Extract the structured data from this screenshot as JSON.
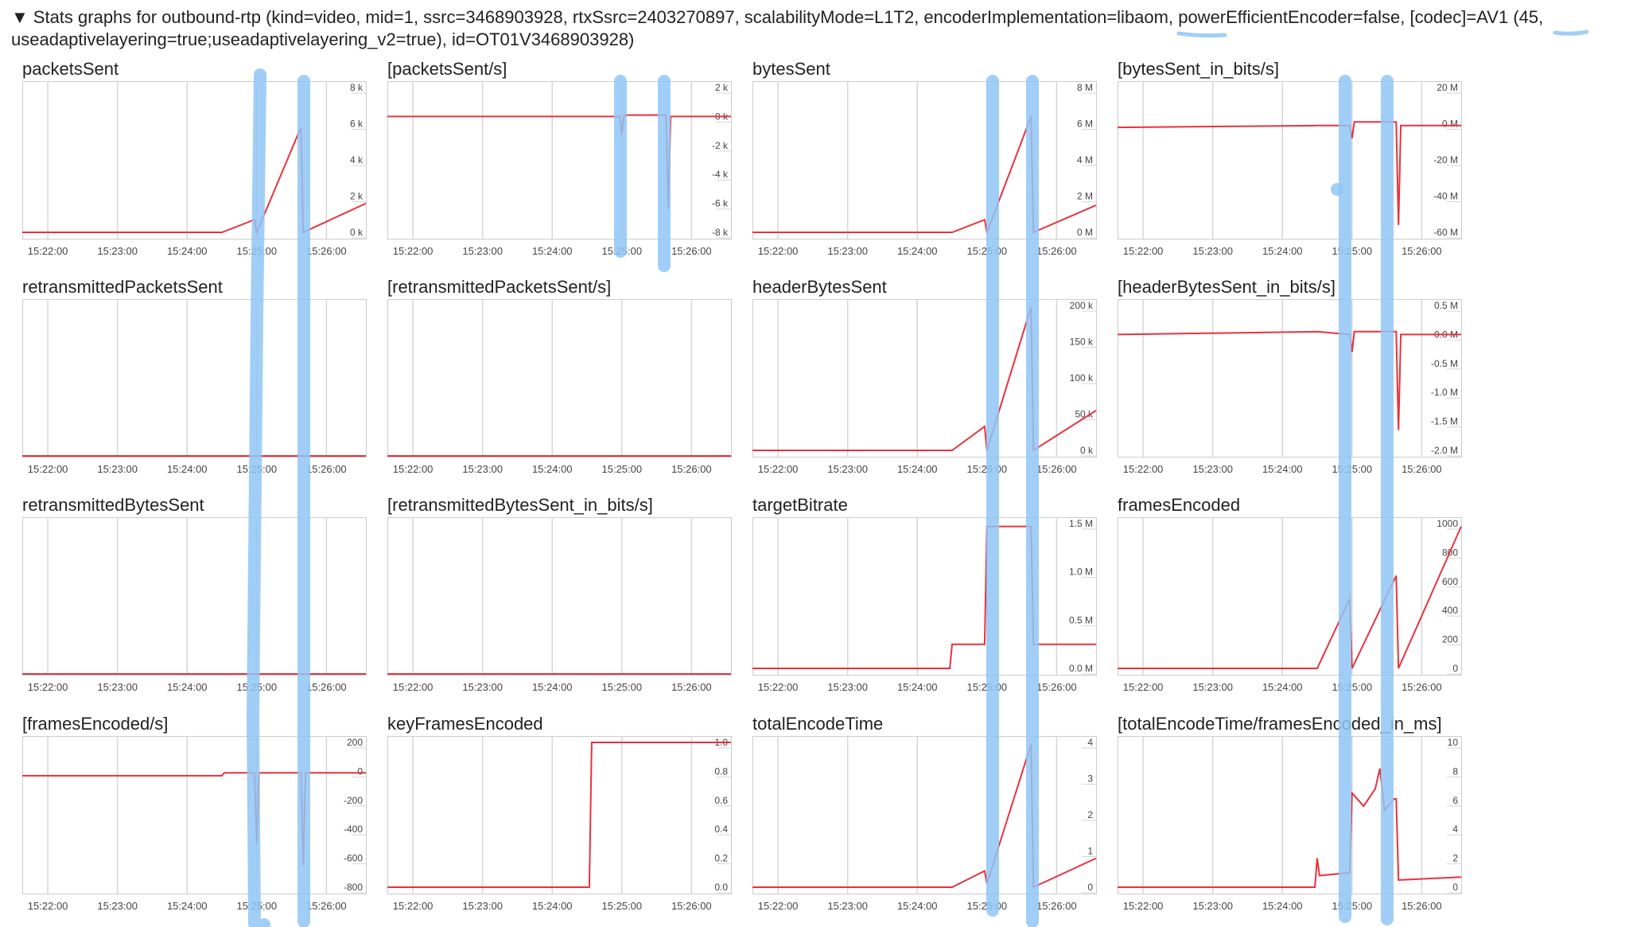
{
  "header": {
    "toggle_glyph": "▼",
    "line1_prefix": "Stats graphs for outbound-rtp (kind=video, mid=1, ssrc=3468903928, rtxSsrc=2403270897, scalabilityMode=L1T2, encoderImplementation=",
    "encoder_impl": "libaom",
    "line1_mid": ", powerEfficientEncoder=false, [codec]=",
    "codec": "AV1",
    "line1_suffix": " (45,",
    "line2": "useadaptivelayering=true;useadaptivelayering_v2=true), id=OT01V3468903928)"
  },
  "colors": {
    "line": "#e8323c",
    "grid": "#d6d6d6",
    "frame": "#cccccc",
    "annotation": "#8fc6f5",
    "text": "#222222",
    "tick_text": "#444444"
  },
  "x_ticks": [
    "15:22:00",
    "15:23:00",
    "15:24:00",
    "15:25:00",
    "15:26:00"
  ],
  "chart_data": [
    {
      "type": "line",
      "title": "packetsSent",
      "x": [
        "15:21:38",
        "15:24:30",
        "15:24:58",
        "15:25:00",
        "15:25:38",
        "15:25:40",
        "15:26:34"
      ],
      "values": [
        0,
        0,
        700,
        0,
        5800,
        0,
        1600
      ],
      "yticks": [
        "8 k",
        "6 k",
        "4 k",
        "2 k",
        "0 k"
      ],
      "ylim": [
        0,
        8000
      ]
    },
    {
      "type": "line",
      "title": "[packetsSent/s]",
      "x": [
        "15:21:38",
        "15:24:58",
        "15:25:00",
        "15:25:02",
        "15:25:38",
        "15:25:40",
        "15:25:42",
        "15:26:34"
      ],
      "values": [
        0,
        0,
        -1200,
        100,
        100,
        -6400,
        0,
        0
      ],
      "yticks": [
        "2 k",
        "0 k",
        "-2 k",
        "-4 k",
        "-6 k",
        "-8 k"
      ],
      "ylim": [
        -8000,
        2000
      ]
    },
    {
      "type": "line",
      "title": "bytesSent",
      "x": [
        "15:21:38",
        "15:24:30",
        "15:24:58",
        "15:25:00",
        "15:25:38",
        "15:25:40",
        "15:26:34"
      ],
      "values": [
        0,
        0,
        700000,
        0,
        6400000,
        0,
        1500000
      ],
      "yticks": [
        "8 M",
        "6 M",
        "4 M",
        "2 M",
        "0 M"
      ],
      "ylim": [
        0,
        8000000
      ]
    },
    {
      "type": "line",
      "title": "[bytesSent_in_bits/s]",
      "x": [
        "15:21:38",
        "15:24:30",
        "15:24:58",
        "15:25:00",
        "15:25:02",
        "15:25:38",
        "15:25:40",
        "15:25:42",
        "15:26:34"
      ],
      "values": [
        -2000000,
        -1000000,
        -1000000,
        -8000000,
        1000000,
        1000000,
        -56000000,
        -1000000,
        -1000000
      ],
      "yticks": [
        "20 M",
        "0 M",
        "-20 M",
        "-40 M",
        "-60 M"
      ],
      "ylim": [
        -60000000,
        20000000
      ]
    },
    {
      "type": "line",
      "title": "retransmittedPacketsSent",
      "x": [
        "15:21:38",
        "15:26:34"
      ],
      "values": [
        0,
        0
      ],
      "yticks": [],
      "ylim": [
        0,
        1
      ]
    },
    {
      "type": "line",
      "title": "[retransmittedPacketsSent/s]",
      "x": [
        "15:21:38",
        "15:26:34"
      ],
      "values": [
        0,
        0
      ],
      "yticks": [],
      "ylim": [
        0,
        1
      ]
    },
    {
      "type": "line",
      "title": "headerBytesSent",
      "x": [
        "15:21:38",
        "15:24:30",
        "15:24:58",
        "15:25:00",
        "15:25:38",
        "15:25:40",
        "15:26:34"
      ],
      "values": [
        0,
        0,
        33000,
        0,
        198000,
        0,
        55000
      ],
      "yticks": [
        "200 k",
        "150 k",
        "100 k",
        "50 k",
        "0 k"
      ],
      "ylim": [
        0,
        200000
      ]
    },
    {
      "type": "line",
      "title": "[headerBytesSent_in_bits/s]",
      "x": [
        "15:21:38",
        "15:24:30",
        "15:24:58",
        "15:25:00",
        "15:25:02",
        "15:25:38",
        "15:25:40",
        "15:25:42",
        "15:26:34"
      ],
      "values": [
        0,
        50000,
        0,
        -300000,
        50000,
        50000,
        -1650000,
        0,
        0
      ],
      "yticks": [
        "0.5 M",
        "0.0 M",
        "-0.5 M",
        "-1.0 M",
        "-1.5 M",
        "-2.0 M"
      ],
      "ylim": [
        -2000000,
        500000
      ]
    },
    {
      "type": "line",
      "title": "retransmittedBytesSent",
      "x": [
        "15:21:38",
        "15:26:34"
      ],
      "values": [
        0,
        0
      ],
      "yticks": [],
      "ylim": [
        0,
        1
      ]
    },
    {
      "type": "line",
      "title": "[retransmittedBytesSent_in_bits/s]",
      "x": [
        "15:21:38",
        "15:26:34"
      ],
      "values": [
        0,
        0
      ],
      "yticks": [],
      "ylim": [
        0,
        1
      ]
    },
    {
      "type": "line",
      "title": "targetBitrate",
      "x": [
        "15:21:38",
        "15:24:28",
        "15:24:30",
        "15:24:58",
        "15:25:00",
        "15:25:38",
        "15:25:40",
        "15:26:34"
      ],
      "values": [
        0,
        0,
        250000,
        250000,
        1470000,
        1470000,
        250000,
        250000
      ],
      "yticks": [
        "1.5 M",
        "1.0 M",
        "0.5 M",
        "0.0 M"
      ],
      "ylim": [
        0,
        1500000
      ]
    },
    {
      "type": "line",
      "title": "framesEncoded",
      "x": [
        "15:21:38",
        "15:24:30",
        "15:24:58",
        "15:25:00",
        "15:25:38",
        "15:25:40",
        "15:26:34"
      ],
      "values": [
        0,
        0,
        480,
        0,
        640,
        0,
        980
      ],
      "yticks": [
        "1000",
        "800",
        "600",
        "400",
        "200",
        "0"
      ],
      "ylim": [
        0,
        1000
      ]
    },
    {
      "type": "line",
      "title": "[framesEncoded/s]",
      "x": [
        "15:21:38",
        "15:24:30",
        "15:24:32",
        "15:24:58",
        "15:25:00",
        "15:25:02",
        "15:25:38",
        "15:25:40",
        "15:25:42",
        "15:26:34"
      ],
      "values": [
        -30,
        -30,
        -10,
        -10,
        -500,
        -10,
        -10,
        -650,
        -10,
        -10
      ],
      "yticks": [
        "200",
        "0",
        "-200",
        "-400",
        "-600",
        "-800"
      ],
      "ylim": [
        -800,
        200
      ]
    },
    {
      "type": "line",
      "title": "keyFramesEncoded",
      "x": [
        "15:21:38",
        "15:24:32",
        "15:24:34",
        "15:26:34"
      ],
      "values": [
        0,
        0,
        1,
        1
      ],
      "yticks": [
        "1.0",
        "0.8",
        "0.6",
        "0.4",
        "0.2",
        "0.0"
      ],
      "ylim": [
        0,
        1
      ]
    },
    {
      "type": "line",
      "title": "totalEncodeTime",
      "x": [
        "15:21:38",
        "15:24:30",
        "15:24:58",
        "15:25:00",
        "15:25:38",
        "15:25:40",
        "15:26:34"
      ],
      "values": [
        0,
        0,
        0.45,
        0.1,
        3.95,
        0,
        0.8
      ],
      "yticks": [
        "4",
        "3",
        "2",
        "1",
        "0"
      ],
      "ylim": [
        0,
        4
      ]
    },
    {
      "type": "line",
      "title": "[totalEncodeTime/framesEncoded_in_ms]",
      "x": [
        "15:21:38",
        "15:24:28",
        "15:24:30",
        "15:24:32",
        "15:24:58",
        "15:25:00",
        "15:25:10",
        "15:25:20",
        "15:25:24",
        "15:25:28",
        "15:25:36",
        "15:25:38",
        "15:25:40",
        "15:26:34"
      ],
      "values": [
        0,
        0,
        2,
        0.8,
        1,
        6.5,
        5.6,
        6.8,
        8.2,
        5.3,
        6.1,
        6.1,
        0.5,
        0.7
      ],
      "yticks": [
        "10",
        "8",
        "6",
        "4",
        "2",
        "0"
      ],
      "ylim": [
        0,
        10
      ]
    }
  ],
  "annotations": {
    "description": "Hand-drawn blue vertical highlight strokes over the 15:25:00 and ~15:25:40 discontinuities, plus underlines under 'libaom' and 'AV1'"
  }
}
